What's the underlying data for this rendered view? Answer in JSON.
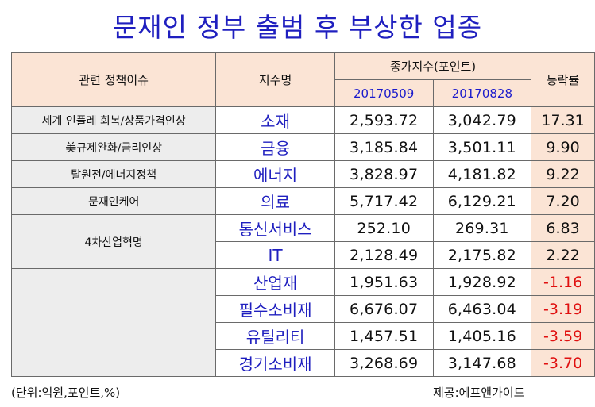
{
  "title": "문재인 정부 출범 후 부상한 업종",
  "header": {
    "issue": "관련 정책이슈",
    "sector": "지수명",
    "index_group": "종가지수(포인트)",
    "date1": "20170509",
    "date2": "20170828",
    "rate": "등락률"
  },
  "rows": [
    {
      "issue": "세계 인플레 회복/상품가격인상",
      "sector": "소재",
      "v1": "2,593.72",
      "v2": "3,042.79",
      "rate": "17.31"
    },
    {
      "issue": "美규제완화/금리인상",
      "sector": "금융",
      "v1": "3,185.84",
      "v2": "3,501.11",
      "rate": "9.90"
    },
    {
      "issue": "탈원전/에너지정책",
      "sector": "에너지",
      "v1": "3,828.97",
      "v2": "4,181.82",
      "rate": "9.22"
    },
    {
      "issue": "문재인케어",
      "sector": "의료",
      "v1": "5,717.42",
      "v2": "6,129.21",
      "rate": "7.20"
    },
    {
      "issue": "4차산업혁명",
      "sector": "통신서비스",
      "v1": "252.10",
      "v2": "269.31",
      "rate": "6.83"
    },
    {
      "issue": "",
      "sector": "IT",
      "v1": "2,128.49",
      "v2": "2,175.82",
      "rate": "2.22"
    },
    {
      "issue": "",
      "sector": "산업재",
      "v1": "1,951.63",
      "v2": "1,928.92",
      "rate": "-1.16"
    },
    {
      "issue": "",
      "sector": "필수소비재",
      "v1": "6,676.07",
      "v2": "6,463.04",
      "rate": "-3.19"
    },
    {
      "issue": "",
      "sector": "유틸리티",
      "v1": "1,457.51",
      "v2": "1,405.16",
      "rate": "-3.59"
    },
    {
      "issue": "",
      "sector": "경기소비재",
      "v1": "3,268.69",
      "v2": "3,147.68",
      "rate": "-3.70"
    }
  ],
  "footer": {
    "unit": "(단위:억원,포인트,%)",
    "source": "제공:에프앤가이드"
  },
  "colors": {
    "title": "#1f1fbf",
    "header_bg": "#fbe4d5",
    "issue_bg": "#ededed",
    "negative": "#e01010"
  }
}
